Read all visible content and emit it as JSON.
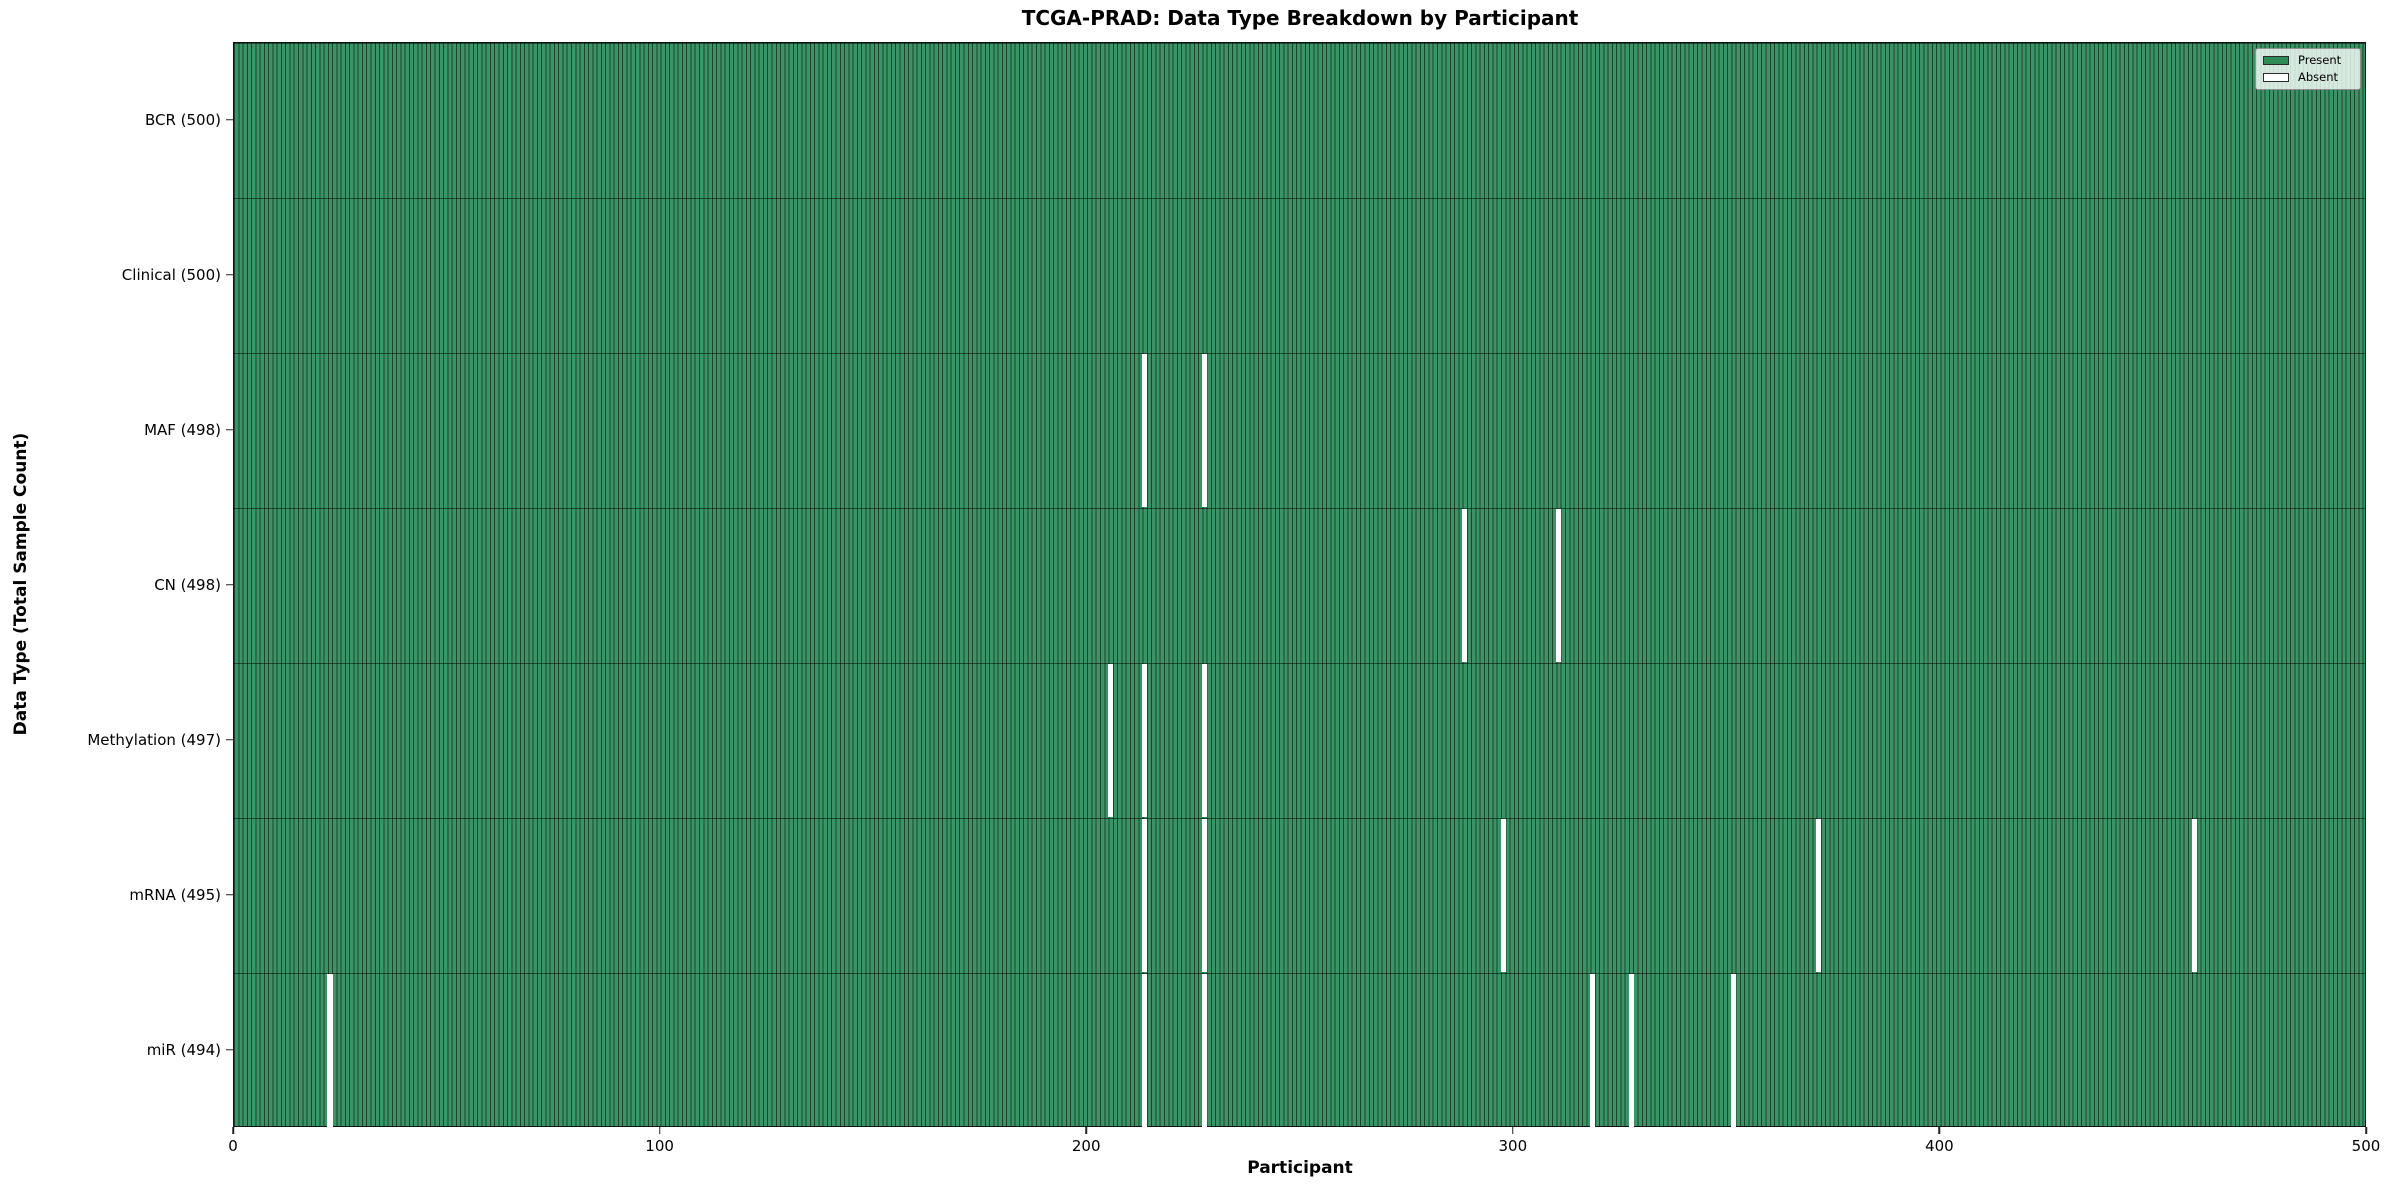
{
  "figure": {
    "title": "TCGA-PRAD: Data Type Breakdown by Participant",
    "xlabel": "Participant",
    "ylabel": "Data Type (Total Sample Count)"
  },
  "legend": {
    "present": "Present",
    "absent": "Absent"
  },
  "colors": {
    "present": "#2e8b57",
    "absent": "#ffffff",
    "bar_fill": "#3b9465",
    "bar_edge": "#1b3c29",
    "plot_border": "#121212",
    "legend_bg": "#eaf3ec"
  },
  "chart_data": {
    "type": "heatmap",
    "title": "TCGA-PRAD: Data Type Breakdown by Participant",
    "xlabel": "Participant",
    "ylabel": "Data Type (Total Sample Count)",
    "legend": [
      {
        "label": "Present",
        "color": "#2e8b57"
      },
      {
        "label": "Absent",
        "color": "#ffffff"
      }
    ],
    "x_axis": {
      "min": 0,
      "max": 500,
      "ticks": [
        0,
        100,
        200,
        300,
        400,
        500
      ]
    },
    "n_participants": 500,
    "rows": [
      {
        "label": "BCR (500)",
        "data_type": "BCR",
        "present_count": 500,
        "missing_participants": []
      },
      {
        "label": "Clinical (500)",
        "data_type": "Clinical",
        "present_count": 500,
        "missing_participants": []
      },
      {
        "label": "MAF (498)",
        "data_type": "MAF",
        "present_count": 498,
        "missing_participants": [
          213,
          227
        ]
      },
      {
        "label": "CN (498)",
        "data_type": "CN",
        "present_count": 498,
        "missing_participants": [
          288,
          310
        ]
      },
      {
        "label": "Methylation (497)",
        "data_type": "Methylation",
        "present_count": 497,
        "missing_participants": [
          205,
          213,
          227
        ]
      },
      {
        "label": "mRNA (495)",
        "data_type": "mRNA",
        "present_count": 495,
        "missing_participants": [
          213,
          227,
          297,
          371,
          459
        ]
      },
      {
        "label": "miR (494)",
        "data_type": "miR",
        "present_count": 494,
        "missing_participants": [
          22,
          213,
          227,
          318,
          327,
          351
        ]
      }
    ]
  }
}
